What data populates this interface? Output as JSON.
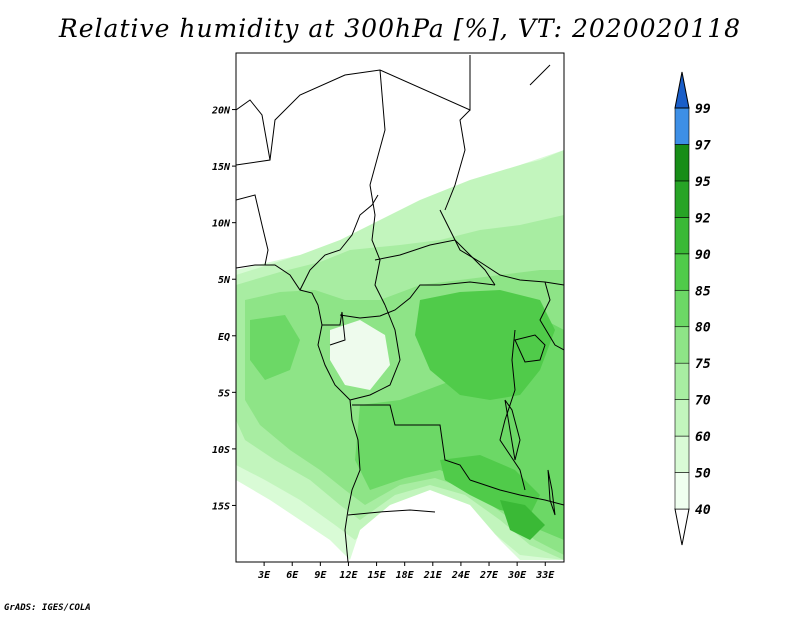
{
  "title": "Relative humidity at 300hPa [%], VT: 2020020118",
  "credit": "GrADS: IGES/COLA",
  "map": {
    "lon_range": [
      0,
      35
    ],
    "lat_range": [
      -20,
      25
    ],
    "lat_ticks": [
      {
        "value": 20,
        "label": "20N"
      },
      {
        "value": 15,
        "label": "15N"
      },
      {
        "value": 10,
        "label": "10N"
      },
      {
        "value": 5,
        "label": "5N"
      },
      {
        "value": 0,
        "label": "EQ"
      },
      {
        "value": -5,
        "label": "5S"
      },
      {
        "value": -10,
        "label": "10S"
      },
      {
        "value": -15,
        "label": "15S"
      }
    ],
    "lon_ticks": [
      {
        "value": 3,
        "label": "3E"
      },
      {
        "value": 6,
        "label": "6E"
      },
      {
        "value": 9,
        "label": "9E"
      },
      {
        "value": 12,
        "label": "12E"
      },
      {
        "value": 15,
        "label": "15E"
      },
      {
        "value": 18,
        "label": "18E"
      },
      {
        "value": 21,
        "label": "21E"
      },
      {
        "value": 24,
        "label": "24E"
      },
      {
        "value": 27,
        "label": "27E"
      },
      {
        "value": 30,
        "label": "30E"
      },
      {
        "value": 33,
        "label": "33E"
      }
    ]
  },
  "colorbar": {
    "levels": [
      {
        "label": "40",
        "color": "#f0fff0"
      },
      {
        "label": "50",
        "color": "#d9fbd6"
      },
      {
        "label": "60",
        "color": "#c2f5bd"
      },
      {
        "label": "70",
        "color": "#a8eda2"
      },
      {
        "label": "75",
        "color": "#8ee487"
      },
      {
        "label": "80",
        "color": "#6cd866"
      },
      {
        "label": "85",
        "color": "#50cb4a"
      },
      {
        "label": "90",
        "color": "#3ab936"
      },
      {
        "label": "92",
        "color": "#27a426"
      },
      {
        "label": "95",
        "color": "#178d17"
      },
      {
        "label": "97",
        "color": "#3d8fe6"
      },
      {
        "label": "99",
        "color": "#1e6fdc"
      }
    ],
    "bottom_color": "#ffffff",
    "top_color": "#1a5ec8"
  }
}
